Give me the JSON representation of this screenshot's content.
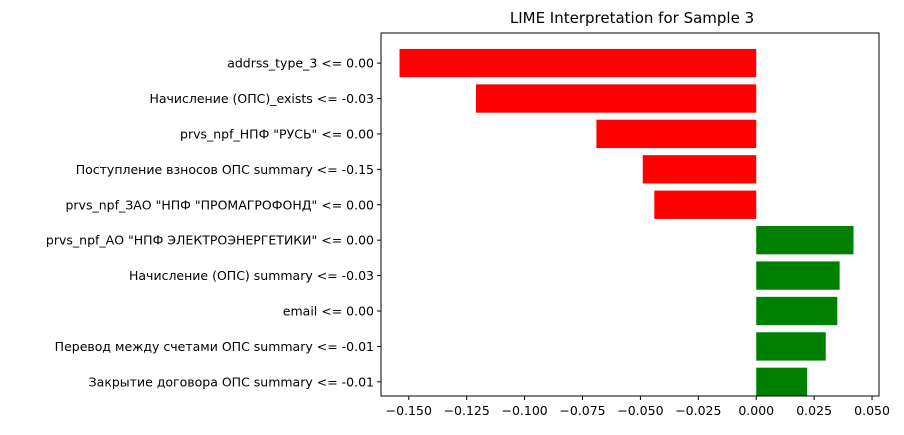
{
  "chart_data": {
    "type": "bar",
    "orientation": "horizontal",
    "title": "LIME Interpretation for Sample 3",
    "xlabel": "",
    "ylabel": "",
    "xlim": [
      -0.162,
      0.053
    ],
    "xticks": [
      -0.15,
      -0.125,
      -0.1,
      -0.075,
      -0.05,
      -0.025,
      0.0,
      0.025,
      0.05
    ],
    "xtick_labels": [
      "−0.150",
      "−0.125",
      "−0.100",
      "−0.075",
      "−0.050",
      "−0.025",
      "0.000",
      "0.025",
      "0.050"
    ],
    "grid": false,
    "negative_color": "#ff0000",
    "positive_color": "#008000",
    "categories": [
      "addrss_type_3 <= 0.00",
      "Начисление (ОПС)_exists <= -0.03",
      "prvs_npf_НПФ \"РУСЬ\" <= 0.00",
      "Поступление взносов ОПС summary <= -0.15",
      "prvs_npf_ЗАО \"НПФ \"ПРОМАГРОФОНД\" <= 0.00",
      "prvs_npf_АО \"НПФ ЭЛЕКТРОЭНЕРГЕТИКИ\" <= 0.00",
      "Начисление (ОПС) summary <= -0.03",
      "email <= 0.00",
      "Перевод между счетами ОПС summary <= -0.01",
      "Закрытие договора ОПС summary <= -0.01"
    ],
    "values": [
      -0.154,
      -0.121,
      -0.069,
      -0.049,
      -0.044,
      0.042,
      0.036,
      0.035,
      0.03,
      0.022
    ]
  }
}
